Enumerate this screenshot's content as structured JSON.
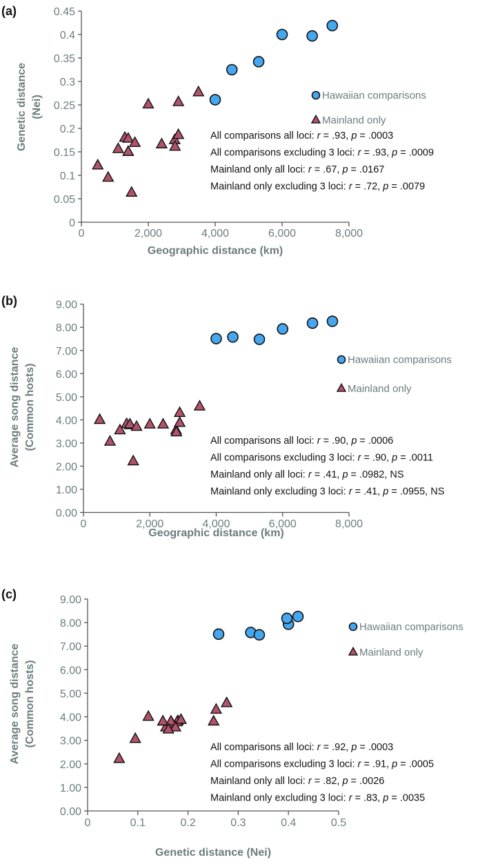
{
  "colors": {
    "hawaiian": "#45a7ef",
    "mainland": "#b0536b",
    "axis_text": "#6b7c7d",
    "axis_line": "#555555"
  },
  "chart_data": [
    {
      "type": "scatter",
      "panel_label": "(a)",
      "xlabel": "Geographic distance (km)",
      "ylabel": [
        "Genetic distance",
        "(Nei)"
      ],
      "xlim": [
        0,
        8000
      ],
      "ylim": [
        0,
        0.45
      ],
      "xticks": [
        "0",
        "2,000",
        "4,000",
        "6,000",
        "8,000"
      ],
      "xtick_values": [
        0,
        2000,
        4000,
        6000,
        8000
      ],
      "yticks": [
        "0",
        "0.05",
        "0.1",
        "0.15",
        "0.2",
        "0.25",
        "0.3",
        "0.35",
        "0.4",
        "0.45"
      ],
      "ytick_values": [
        0,
        0.05,
        0.1,
        0.15,
        0.2,
        0.25,
        0.3,
        0.35,
        0.4,
        0.45
      ],
      "legend": [
        "Hawaiian comparisons",
        "Mainland only"
      ],
      "annotations": [
        "All comparisons all loci:  r = .93, p = .0003",
        "All comparisons excluding 3 loci: r = .93, p = .0009",
        "Mainland only all loci:  r = .67, p = .0167",
        "Mainland only excluding 3 loci: r = .72, p = .0079"
      ],
      "series": [
        {
          "name": "Hawaiian comparisons",
          "marker": "circle",
          "x": [
            4000,
            4500,
            5300,
            6000,
            6900,
            7500
          ],
          "y": [
            0.261,
            0.325,
            0.342,
            0.4,
            0.397,
            0.419
          ]
        },
        {
          "name": "Mainland only",
          "marker": "triangle",
          "x": [
            490,
            800,
            1100,
            1300,
            1400,
            1400,
            1400,
            1500,
            1600,
            2000,
            2400,
            2790,
            2800,
            2900,
            2900,
            3500
          ],
          "y": [
            0.121,
            0.095,
            0.156,
            0.18,
            0.178,
            0.15,
            0.15,
            0.063,
            0.169,
            0.251,
            0.166,
            0.175,
            0.161,
            0.186,
            0.256,
            0.277
          ]
        }
      ]
    },
    {
      "type": "scatter",
      "panel_label": "(b)",
      "xlabel": "Geographic distance (km)",
      "ylabel": [
        "Average song distance",
        "(Common hosts)"
      ],
      "xlim": [
        0,
        8000
      ],
      "ylim": [
        0,
        9
      ],
      "xticks": [
        "0",
        "2,000",
        "4,000",
        "6,000",
        "8,000"
      ],
      "xtick_values": [
        0,
        2000,
        4000,
        6000,
        8000
      ],
      "yticks": [
        "0.00",
        "1.00",
        "2.00",
        "3.00",
        "4.00",
        "5.00",
        "6.00",
        "7.00",
        "8.00",
        "9.00"
      ],
      "ytick_values": [
        0,
        1,
        2,
        3,
        4,
        5,
        6,
        7,
        8,
        9
      ],
      "legend": [
        "Hawaiian comparisons",
        "Mainland only"
      ],
      "annotations": [
        "All comparisons all loci:  r = .90, p = .0006",
        "All comparisons excluding 3 loci: r = .90, p = .0011",
        "Mainland only all loci:  r = .41, p = .0982, NS",
        "Mainland only excluding 3 loci: r = .41, p = .0955, NS"
      ],
      "series": [
        {
          "name": "Hawaiian comparisons",
          "marker": "circle",
          "x": [
            4000,
            4500,
            5300,
            6000,
            6900,
            7500
          ],
          "y": [
            7.51,
            7.58,
            7.48,
            7.93,
            8.18,
            8.26
          ]
        },
        {
          "name": "Mainland only",
          "marker": "triangle",
          "x": [
            490,
            800,
            1100,
            1300,
            1400,
            1400,
            1400,
            1500,
            1600,
            2000,
            2400,
            2790,
            2800,
            2900,
            2900,
            3500
          ],
          "y": [
            4.0,
            3.06,
            3.55,
            3.82,
            3.77,
            3.8,
            3.8,
            2.21,
            3.7,
            3.8,
            3.8,
            3.55,
            3.46,
            3.87,
            4.3,
            4.58
          ]
        }
      ]
    },
    {
      "type": "scatter",
      "panel_label": "(c)",
      "xlabel": "Genetic distance (Nei)",
      "ylabel": [
        "Average song distance",
        "(Common hosts)"
      ],
      "xlim": [
        0,
        0.5
      ],
      "ylim": [
        0,
        9
      ],
      "xticks": [
        "0",
        "0.1",
        "0.2",
        "0.3",
        "0.4",
        "0.5"
      ],
      "xtick_values": [
        0,
        0.1,
        0.2,
        0.3,
        0.4,
        0.5
      ],
      "yticks": [
        "0.00",
        "1.00",
        "2.00",
        "3.00",
        "4.00",
        "5.00",
        "6.00",
        "7.00",
        "8.00",
        "9.00"
      ],
      "ytick_values": [
        0,
        1,
        2,
        3,
        4,
        5,
        6,
        7,
        8,
        9
      ],
      "legend": [
        "Hawaiian comparisons",
        "Mainland only"
      ],
      "annotations": [
        "All comparisons all loci:  r = .92, p = .0003",
        "All comparisons excluding 3 loci: r = .91, p = .0005",
        "Mainland only all loci:  r = .82, p = .0026",
        "Mainland only excluding 3 loci: r = .83, p = .0035"
      ],
      "series": [
        {
          "name": "Hawaiian comparisons",
          "marker": "circle",
          "x": [
            0.261,
            0.325,
            0.342,
            0.4,
            0.397,
            0.419
          ],
          "y": [
            7.51,
            7.58,
            7.48,
            7.93,
            8.18,
            8.26
          ]
        },
        {
          "name": "Mainland only",
          "marker": "triangle",
          "x": [
            0.121,
            0.095,
            0.156,
            0.18,
            0.178,
            0.15,
            0.15,
            0.063,
            0.169,
            0.251,
            0.166,
            0.175,
            0.161,
            0.186,
            0.256,
            0.277
          ],
          "y": [
            4.0,
            3.06,
            3.55,
            3.82,
            3.77,
            3.8,
            3.8,
            2.21,
            3.7,
            3.8,
            3.8,
            3.55,
            3.46,
            3.87,
            4.3,
            4.58
          ]
        }
      ]
    }
  ]
}
